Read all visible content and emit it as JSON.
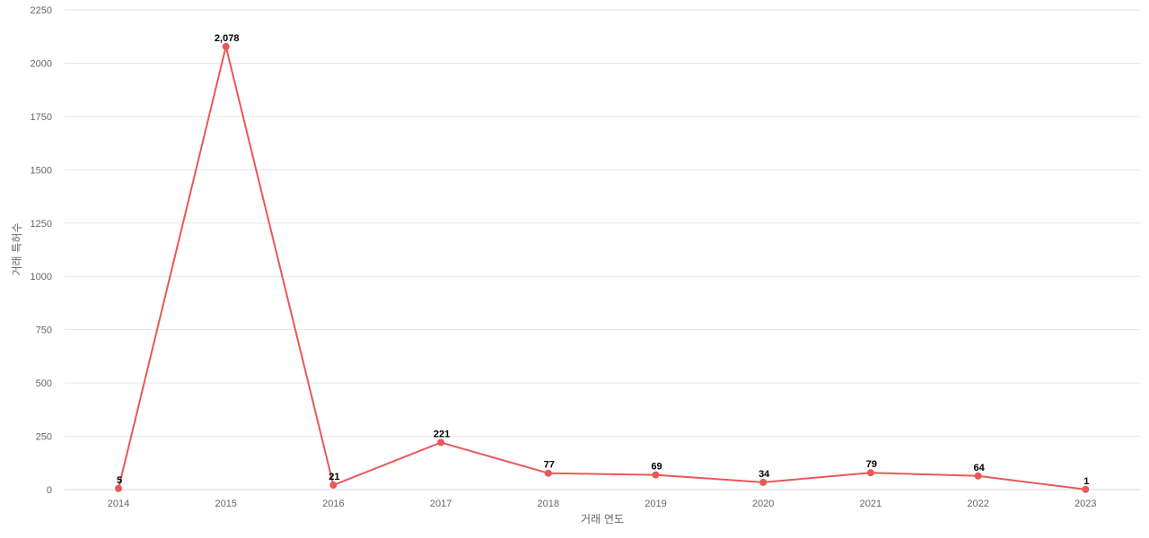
{
  "chart_data": {
    "type": "line",
    "title": "",
    "xlabel": "거래 연도",
    "ylabel": "거래 특허수",
    "categories": [
      "2014",
      "2015",
      "2016",
      "2017",
      "2018",
      "2019",
      "2020",
      "2021",
      "2022",
      "2023"
    ],
    "series": [
      {
        "values": [
          5,
          2078,
          21,
          221,
          77,
          69,
          34,
          79,
          64,
          1
        ],
        "data_labels": [
          "5",
          "2,078",
          "21",
          "221",
          "77",
          "69",
          "34",
          "79",
          "64",
          "1"
        ],
        "color": "#eb5757"
      }
    ],
    "ylim": [
      0,
      2250
    ],
    "yticks": [
      0,
      250,
      500,
      750,
      1000,
      1250,
      1500,
      1750,
      2000,
      2250
    ],
    "grid": true,
    "legend": "none"
  }
}
